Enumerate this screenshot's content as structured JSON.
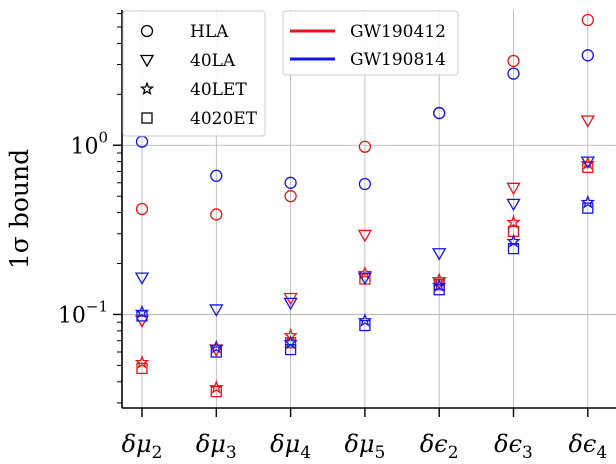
{
  "chart_data": {
    "type": "scatter",
    "ylabel": "1σ bound",
    "yscale": "log",
    "ylim": [
      0.028,
      6.3
    ],
    "yticks": [
      {
        "value": 0.1,
        "base": "10",
        "exp": "−1"
      },
      {
        "value": 1.0,
        "base": "10",
        "exp": "0"
      }
    ],
    "grid": true,
    "legend_placement": "top-left",
    "categories": [
      {
        "sym": "δμ",
        "sub": "2"
      },
      {
        "sym": "δμ",
        "sub": "3"
      },
      {
        "sym": "δμ",
        "sub": "4"
      },
      {
        "sym": "δμ",
        "sub": "5"
      },
      {
        "sym": "δϵ",
        "sub": "2"
      },
      {
        "sym": "δϵ",
        "sub": "3"
      },
      {
        "sym": "δϵ",
        "sub": "4"
      }
    ],
    "marker_legend": [
      {
        "label": "HLA",
        "marker": "circle"
      },
      {
        "label": "40LA",
        "marker": "triangle-down"
      },
      {
        "label": "40LET",
        "marker": "star"
      },
      {
        "label": "4020ET",
        "marker": "square"
      }
    ],
    "event_legend": [
      {
        "label": "GW190412",
        "color": "#e8141c"
      },
      {
        "label": "GW190814",
        "color": "#1414e6"
      }
    ],
    "series": [
      {
        "event": "GW190412",
        "detector": "HLA",
        "marker": "circle",
        "color": "#e8141c",
        "values": [
          0.42,
          0.39,
          0.5,
          0.98,
          1.55,
          3.15,
          5.5
        ]
      },
      {
        "event": "GW190412",
        "detector": "40LA",
        "marker": "triangle-down",
        "color": "#e8141c",
        "values": [
          0.092,
          0.062,
          0.125,
          0.295,
          0.155,
          0.56,
          1.4
        ]
      },
      {
        "event": "GW190412",
        "detector": "40LET",
        "marker": "star",
        "color": "#e8141c",
        "values": [
          0.052,
          0.037,
          0.075,
          0.175,
          0.16,
          0.35,
          0.78
        ]
      },
      {
        "event": "GW190412",
        "detector": "4020ET",
        "marker": "square",
        "color": "#e8141c",
        "values": [
          0.048,
          0.035,
          0.068,
          0.162,
          0.15,
          0.31,
          0.74
        ]
      },
      {
        "event": "GW190814",
        "detector": "HLA",
        "marker": "circle",
        "color": "#1414e6",
        "values": [
          1.05,
          0.66,
          0.6,
          0.59,
          1.55,
          2.65,
          3.4
        ]
      },
      {
        "event": "GW190814",
        "detector": "40LA",
        "marker": "triangle-down",
        "color": "#1414e6",
        "values": [
          0.165,
          0.107,
          0.117,
          0.165,
          0.23,
          0.45,
          0.8
        ]
      },
      {
        "event": "GW190814",
        "detector": "40LET",
        "marker": "star",
        "color": "#1414e6",
        "values": [
          0.103,
          0.064,
          0.068,
          0.092,
          0.148,
          0.27,
          0.46
        ]
      },
      {
        "event": "GW190814",
        "detector": "4020ET",
        "marker": "square",
        "color": "#1414e6",
        "values": [
          0.098,
          0.06,
          0.062,
          0.086,
          0.14,
          0.245,
          0.425
        ]
      }
    ]
  }
}
